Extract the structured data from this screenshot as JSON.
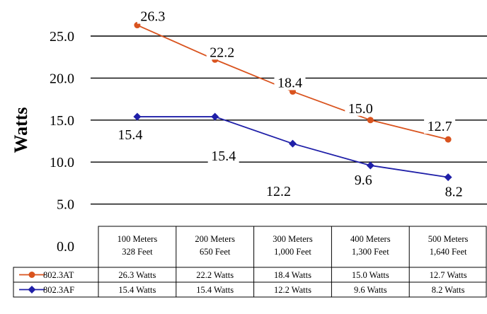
{
  "chart_data": {
    "type": "line",
    "categories": [
      [
        "100 Meters",
        "328 Feet"
      ],
      [
        "200 Meters",
        "650 Feet"
      ],
      [
        "300 Meters",
        "1,000 Feet"
      ],
      [
        "400 Meters",
        "1,300 Feet"
      ],
      [
        "500 Meters",
        "1,640 Feet"
      ]
    ],
    "ylabel": "Watts",
    "ylim": [
      0,
      25
    ],
    "yticks": [
      "0.0",
      "5.0",
      "10.0",
      "15.0",
      "20.0",
      "25.0"
    ],
    "grid": true,
    "series": [
      {
        "name": "802.3AT",
        "color": "#d9531e",
        "marker": "circle",
        "values": [
          26.3,
          22.2,
          18.4,
          15.0,
          12.7
        ],
        "labels": [
          "26.3",
          "22.2",
          "18.4",
          "15.0",
          "12.7"
        ],
        "table": [
          "26.3 Watts",
          "22.2 Watts",
          "18.4 Watts",
          "15.0 Watts",
          "12.7 Watts"
        ]
      },
      {
        "name": "802.3AF",
        "color": "#1f1fa8",
        "marker": "diamond",
        "values": [
          15.4,
          15.4,
          12.2,
          9.6,
          8.2
        ],
        "labels": [
          "15.4",
          "15.4",
          "12.2",
          "9.6",
          "8.2"
        ],
        "table": [
          "15.4 Watts",
          "15.4 Watts",
          "12.2 Watts",
          "9.6 Watts",
          "8.2 Watts"
        ]
      }
    ]
  }
}
